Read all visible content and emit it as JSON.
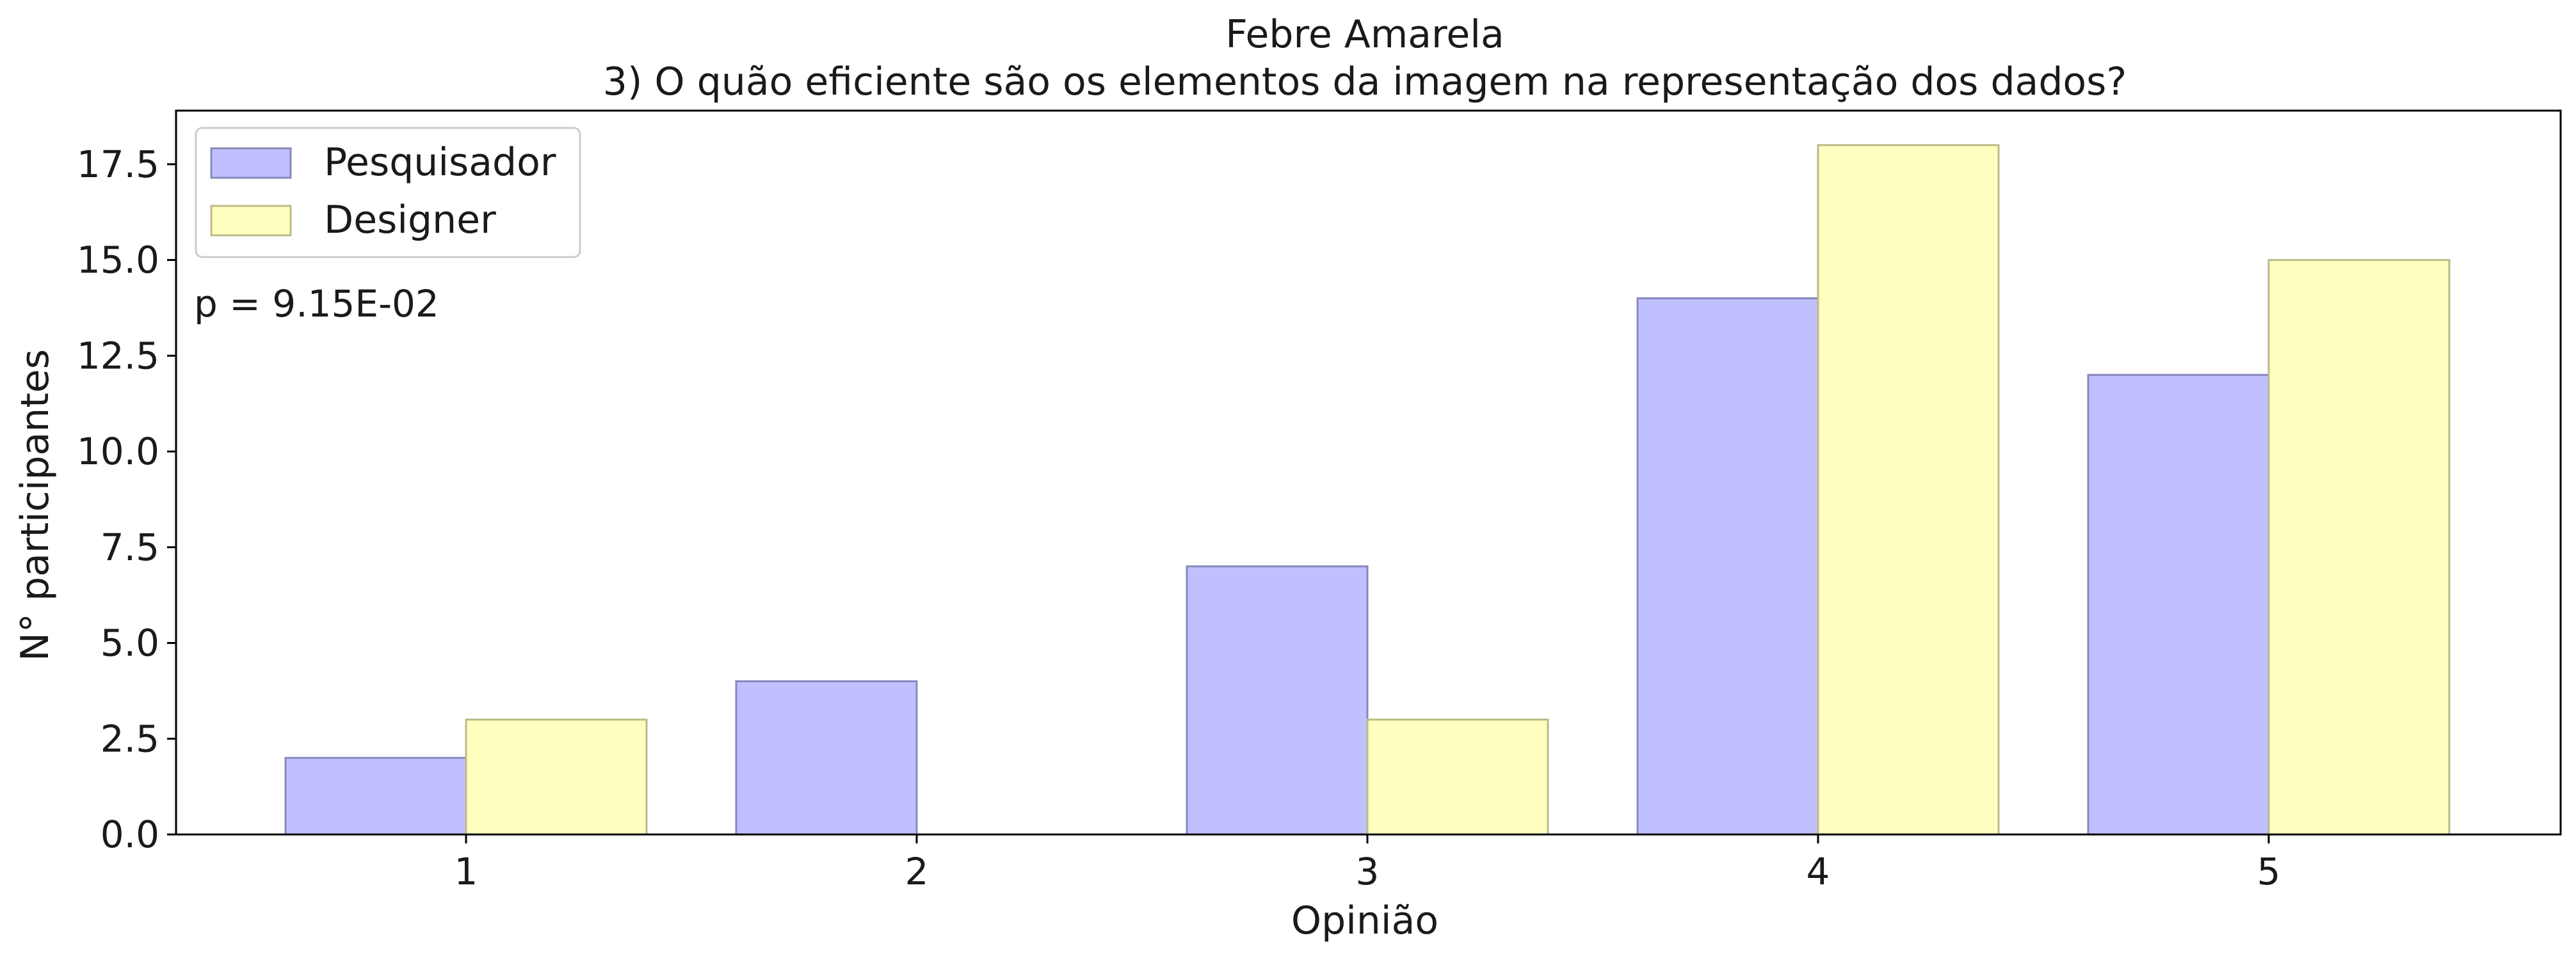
{
  "chart_data": {
    "type": "bar",
    "title": "Febre Amarela",
    "subtitle": "3) O quão eficiente são os elementos da imagem na representação dos dados?",
    "xlabel": "Opinião",
    "ylabel": "N° participantes",
    "categories": [
      "1",
      "2",
      "3",
      "4",
      "5"
    ],
    "series": [
      {
        "name": "Pesquisador",
        "values": [
          2,
          4,
          7,
          14,
          12
        ],
        "color": "#c0c0ff"
      },
      {
        "name": "Designer",
        "values": [
          3,
          0,
          3,
          18,
          15
        ],
        "color": "#ffffc0"
      }
    ],
    "ylim": [
      0,
      18.9
    ],
    "yticks": [
      "0.0",
      "2.5",
      "5.0",
      "7.5",
      "10.0",
      "12.5",
      "15.0",
      "17.5"
    ],
    "annotation": "p = 9.15E-02",
    "legend_position": "top-left",
    "grid": false
  }
}
